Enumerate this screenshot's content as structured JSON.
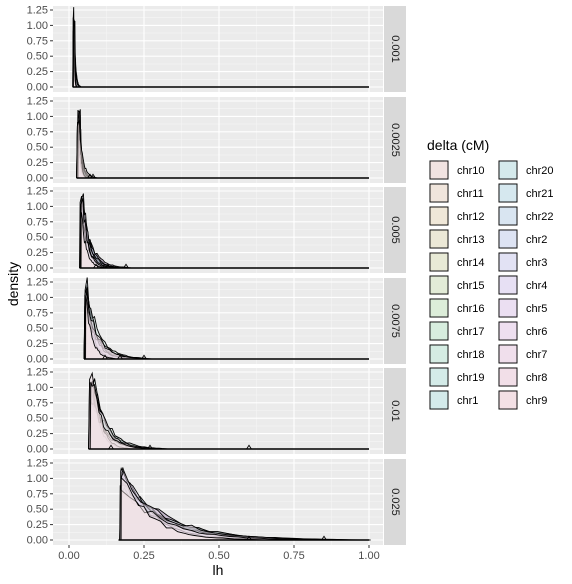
{
  "chart_data": {
    "type": "area",
    "xlabel": "lh",
    "ylabel": "density",
    "xlim": [
      0,
      1
    ],
    "ylim": [
      0,
      1.25
    ],
    "x_ticks": [
      "0.00",
      "0.25",
      "0.50",
      "0.75",
      "1.00"
    ],
    "y_ticks": [
      "0.00",
      "0.25",
      "0.50",
      "0.75",
      "1.00",
      "1.25"
    ],
    "grid": true,
    "legend": {
      "title": "delta (cM)",
      "placement": "right",
      "columns": 2,
      "entries": [
        {
          "name": "chr10",
          "color": "#f1e3e1"
        },
        {
          "name": "chr11",
          "color": "#f0e5dc"
        },
        {
          "name": "chr12",
          "color": "#efe7d8"
        },
        {
          "name": "chr13",
          "color": "#ebe8d6"
        },
        {
          "name": "chr14",
          "color": "#e8ead6"
        },
        {
          "name": "chr15",
          "color": "#e2ebd7"
        },
        {
          "name": "chr16",
          "color": "#dcedd9"
        },
        {
          "name": "chr17",
          "color": "#d7edde"
        },
        {
          "name": "chr18",
          "color": "#d5ece3"
        },
        {
          "name": "chr19",
          "color": "#d4ebe8"
        },
        {
          "name": "chr1",
          "color": "#d4eaea"
        },
        {
          "name": "chr20",
          "color": "#d5eaec"
        },
        {
          "name": "chr21",
          "color": "#d6e8ef"
        },
        {
          "name": "chr22",
          "color": "#d9e5f1"
        },
        {
          "name": "chr2",
          "color": "#dde3f3"
        },
        {
          "name": "chr3",
          "color": "#e2e2f4"
        },
        {
          "name": "chr4",
          "color": "#e7e0f4"
        },
        {
          "name": "chr5",
          "color": "#ebdff2"
        },
        {
          "name": "chr6",
          "color": "#eedff0"
        },
        {
          "name": "chr7",
          "color": "#f0dfec"
        },
        {
          "name": "chr8",
          "color": "#f2dfe8"
        },
        {
          "name": "chr9",
          "color": "#f3e0e5"
        }
      ]
    },
    "facets": [
      {
        "label": "0.001",
        "peak_x": 0.018,
        "start_x": 0.012,
        "tail_x": 0.04,
        "bumps": []
      },
      {
        "label": "0.0025",
        "peak_x": 0.035,
        "start_x": 0.025,
        "tail_x": 0.09,
        "bumps": [
          0.07,
          0.08
        ]
      },
      {
        "label": "0.005",
        "peak_x": 0.045,
        "start_x": 0.035,
        "tail_x": 0.2,
        "bumps": [
          0.09,
          0.13,
          0.19
        ]
      },
      {
        "label": "0.0075",
        "peak_x": 0.06,
        "start_x": 0.05,
        "tail_x": 0.26,
        "bumps": [
          0.12,
          0.17,
          0.25
        ]
      },
      {
        "label": "0.01",
        "peak_x": 0.08,
        "start_x": 0.065,
        "tail_x": 0.32,
        "bumps": [
          0.14,
          0.27,
          0.6
        ]
      },
      {
        "label": "0.025",
        "peak_x": 0.18,
        "start_x": 0.165,
        "tail_x": 0.95,
        "bumps": [
          0.6,
          0.85
        ]
      }
    ]
  }
}
